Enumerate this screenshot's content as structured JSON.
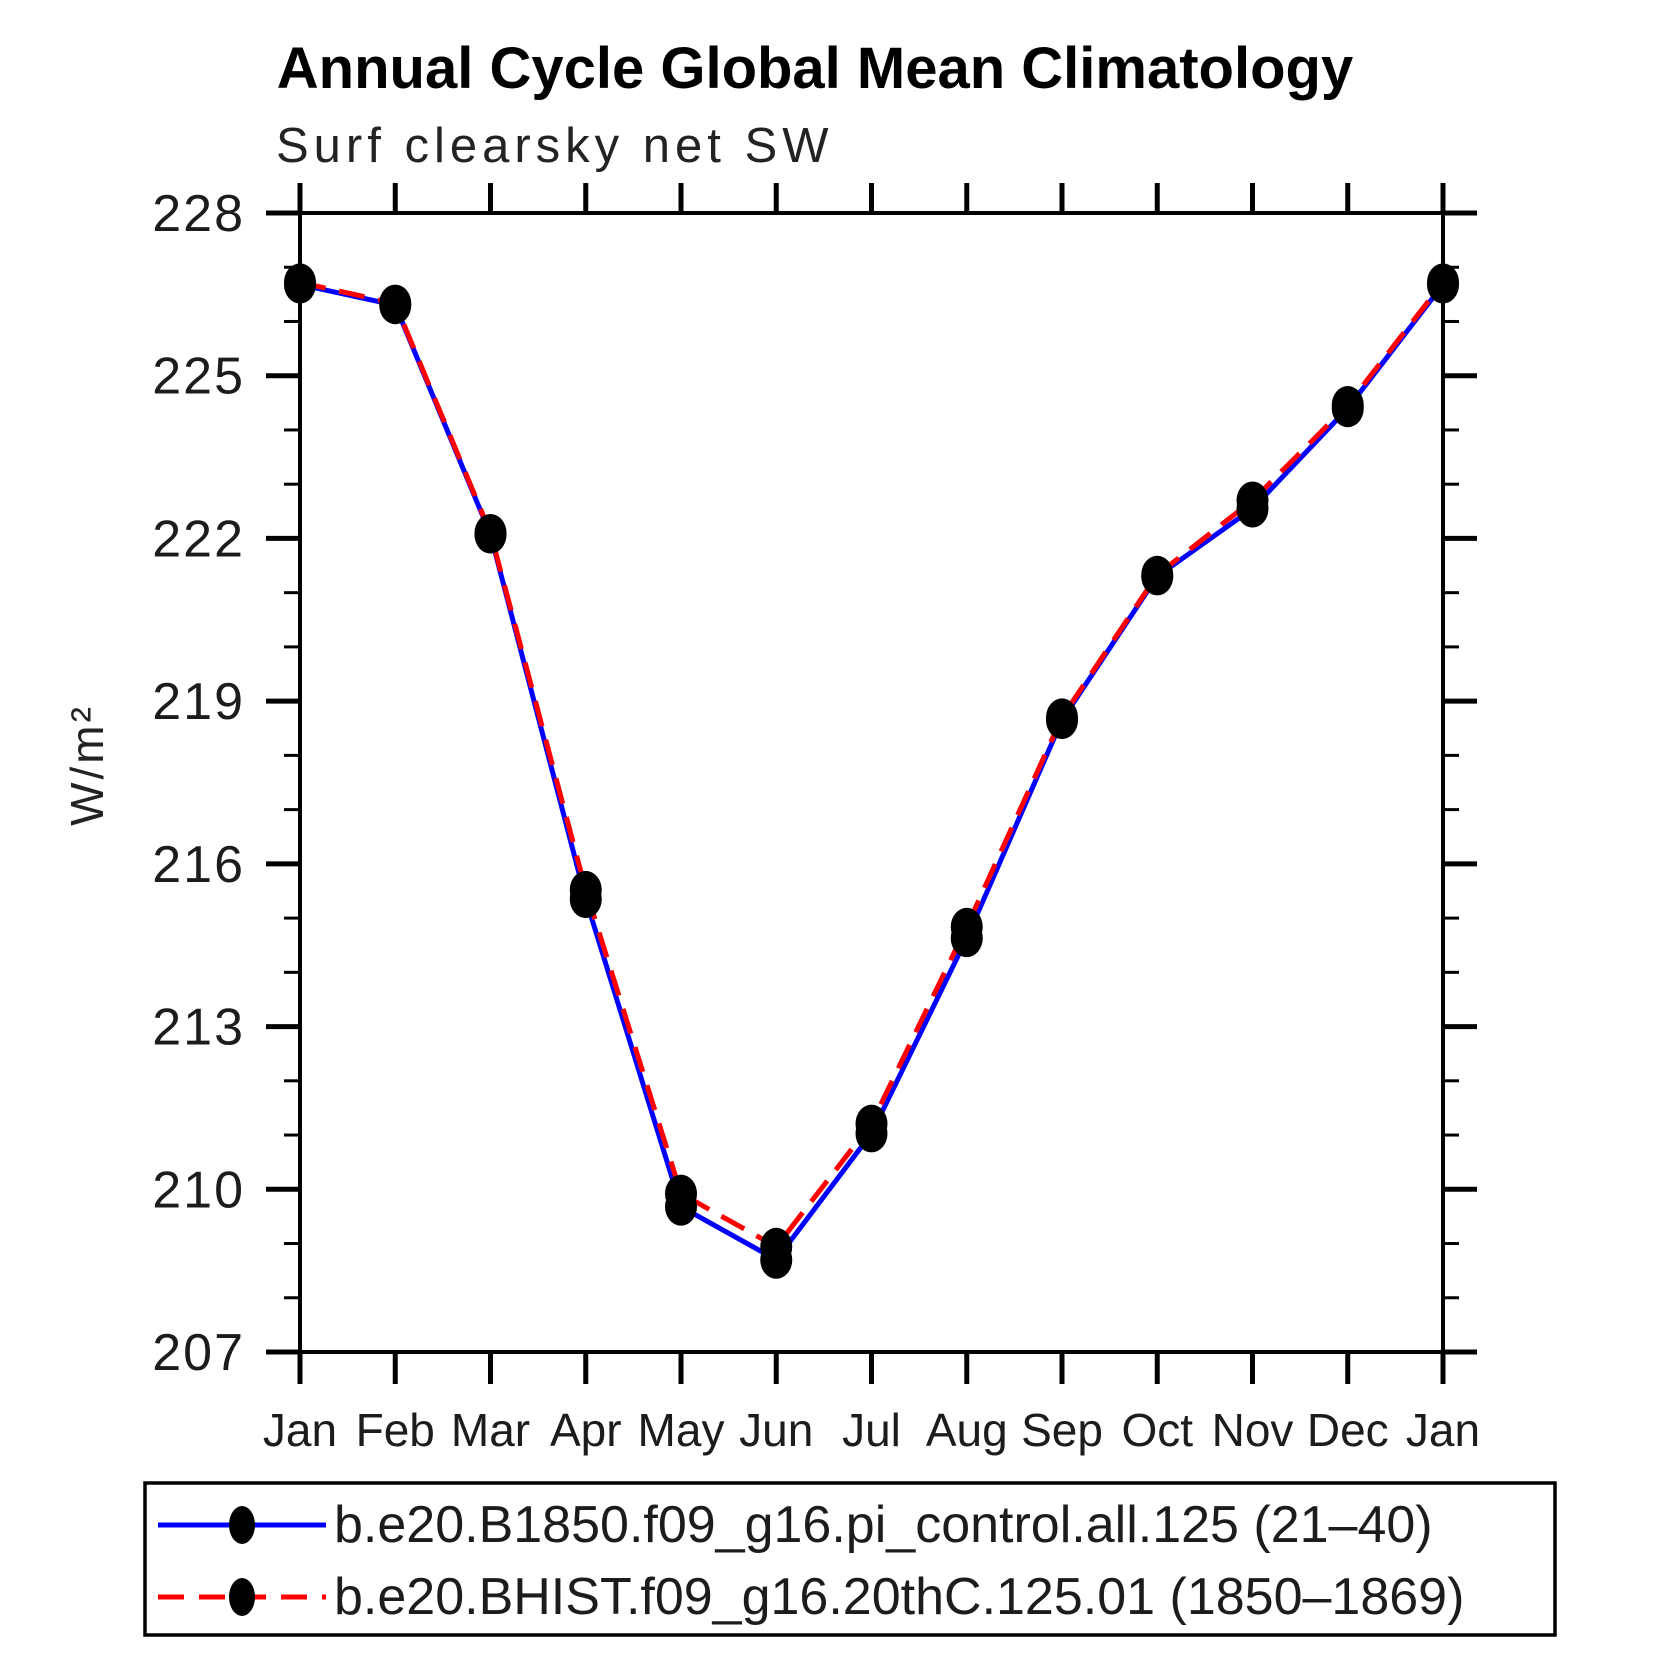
{
  "page": {
    "background": "#ffffff"
  },
  "chart_data": {
    "type": "line",
    "title": "Annual Cycle Global Mean Climatology",
    "subtitle": "Surf clearsky net SW",
    "xlabel": "",
    "ylabel": "W/m²",
    "categories": [
      "Jan",
      "Feb",
      "Mar",
      "Apr",
      "May",
      "Jun",
      "Jul",
      "Aug",
      "Sep",
      "Oct",
      "Nov",
      "Dec",
      "Jan"
    ],
    "ylim": [
      207,
      228
    ],
    "ytick_step": 3,
    "yminor_step": 1,
    "ytick_labels": [
      "207",
      "210",
      "213",
      "216",
      "219",
      "222",
      "225",
      "228"
    ],
    "grid": false,
    "legend_position": "bottom",
    "axis_color": "#000000",
    "marker_color": "#000000",
    "series": [
      {
        "name": "b.e20.B1850.f09_g16.pi_control.all.125 (21–40)",
        "color": "#0000ff",
        "style": "solid",
        "marker": "filled-oval",
        "values": [
          226.68,
          226.3,
          222.07,
          215.35,
          209.68,
          208.7,
          211.03,
          214.63,
          218.65,
          221.3,
          222.55,
          224.4,
          226.68
        ]
      },
      {
        "name": "b.e20.BHIST.f09_g16.20thC.125.01 (1850–1869)",
        "color": "#ff0000",
        "style": "dashed",
        "marker": "filled-oval",
        "values": [
          226.72,
          226.33,
          222.1,
          215.52,
          209.92,
          208.94,
          211.21,
          214.84,
          218.7,
          221.33,
          222.7,
          224.46,
          226.72
        ]
      }
    ]
  }
}
